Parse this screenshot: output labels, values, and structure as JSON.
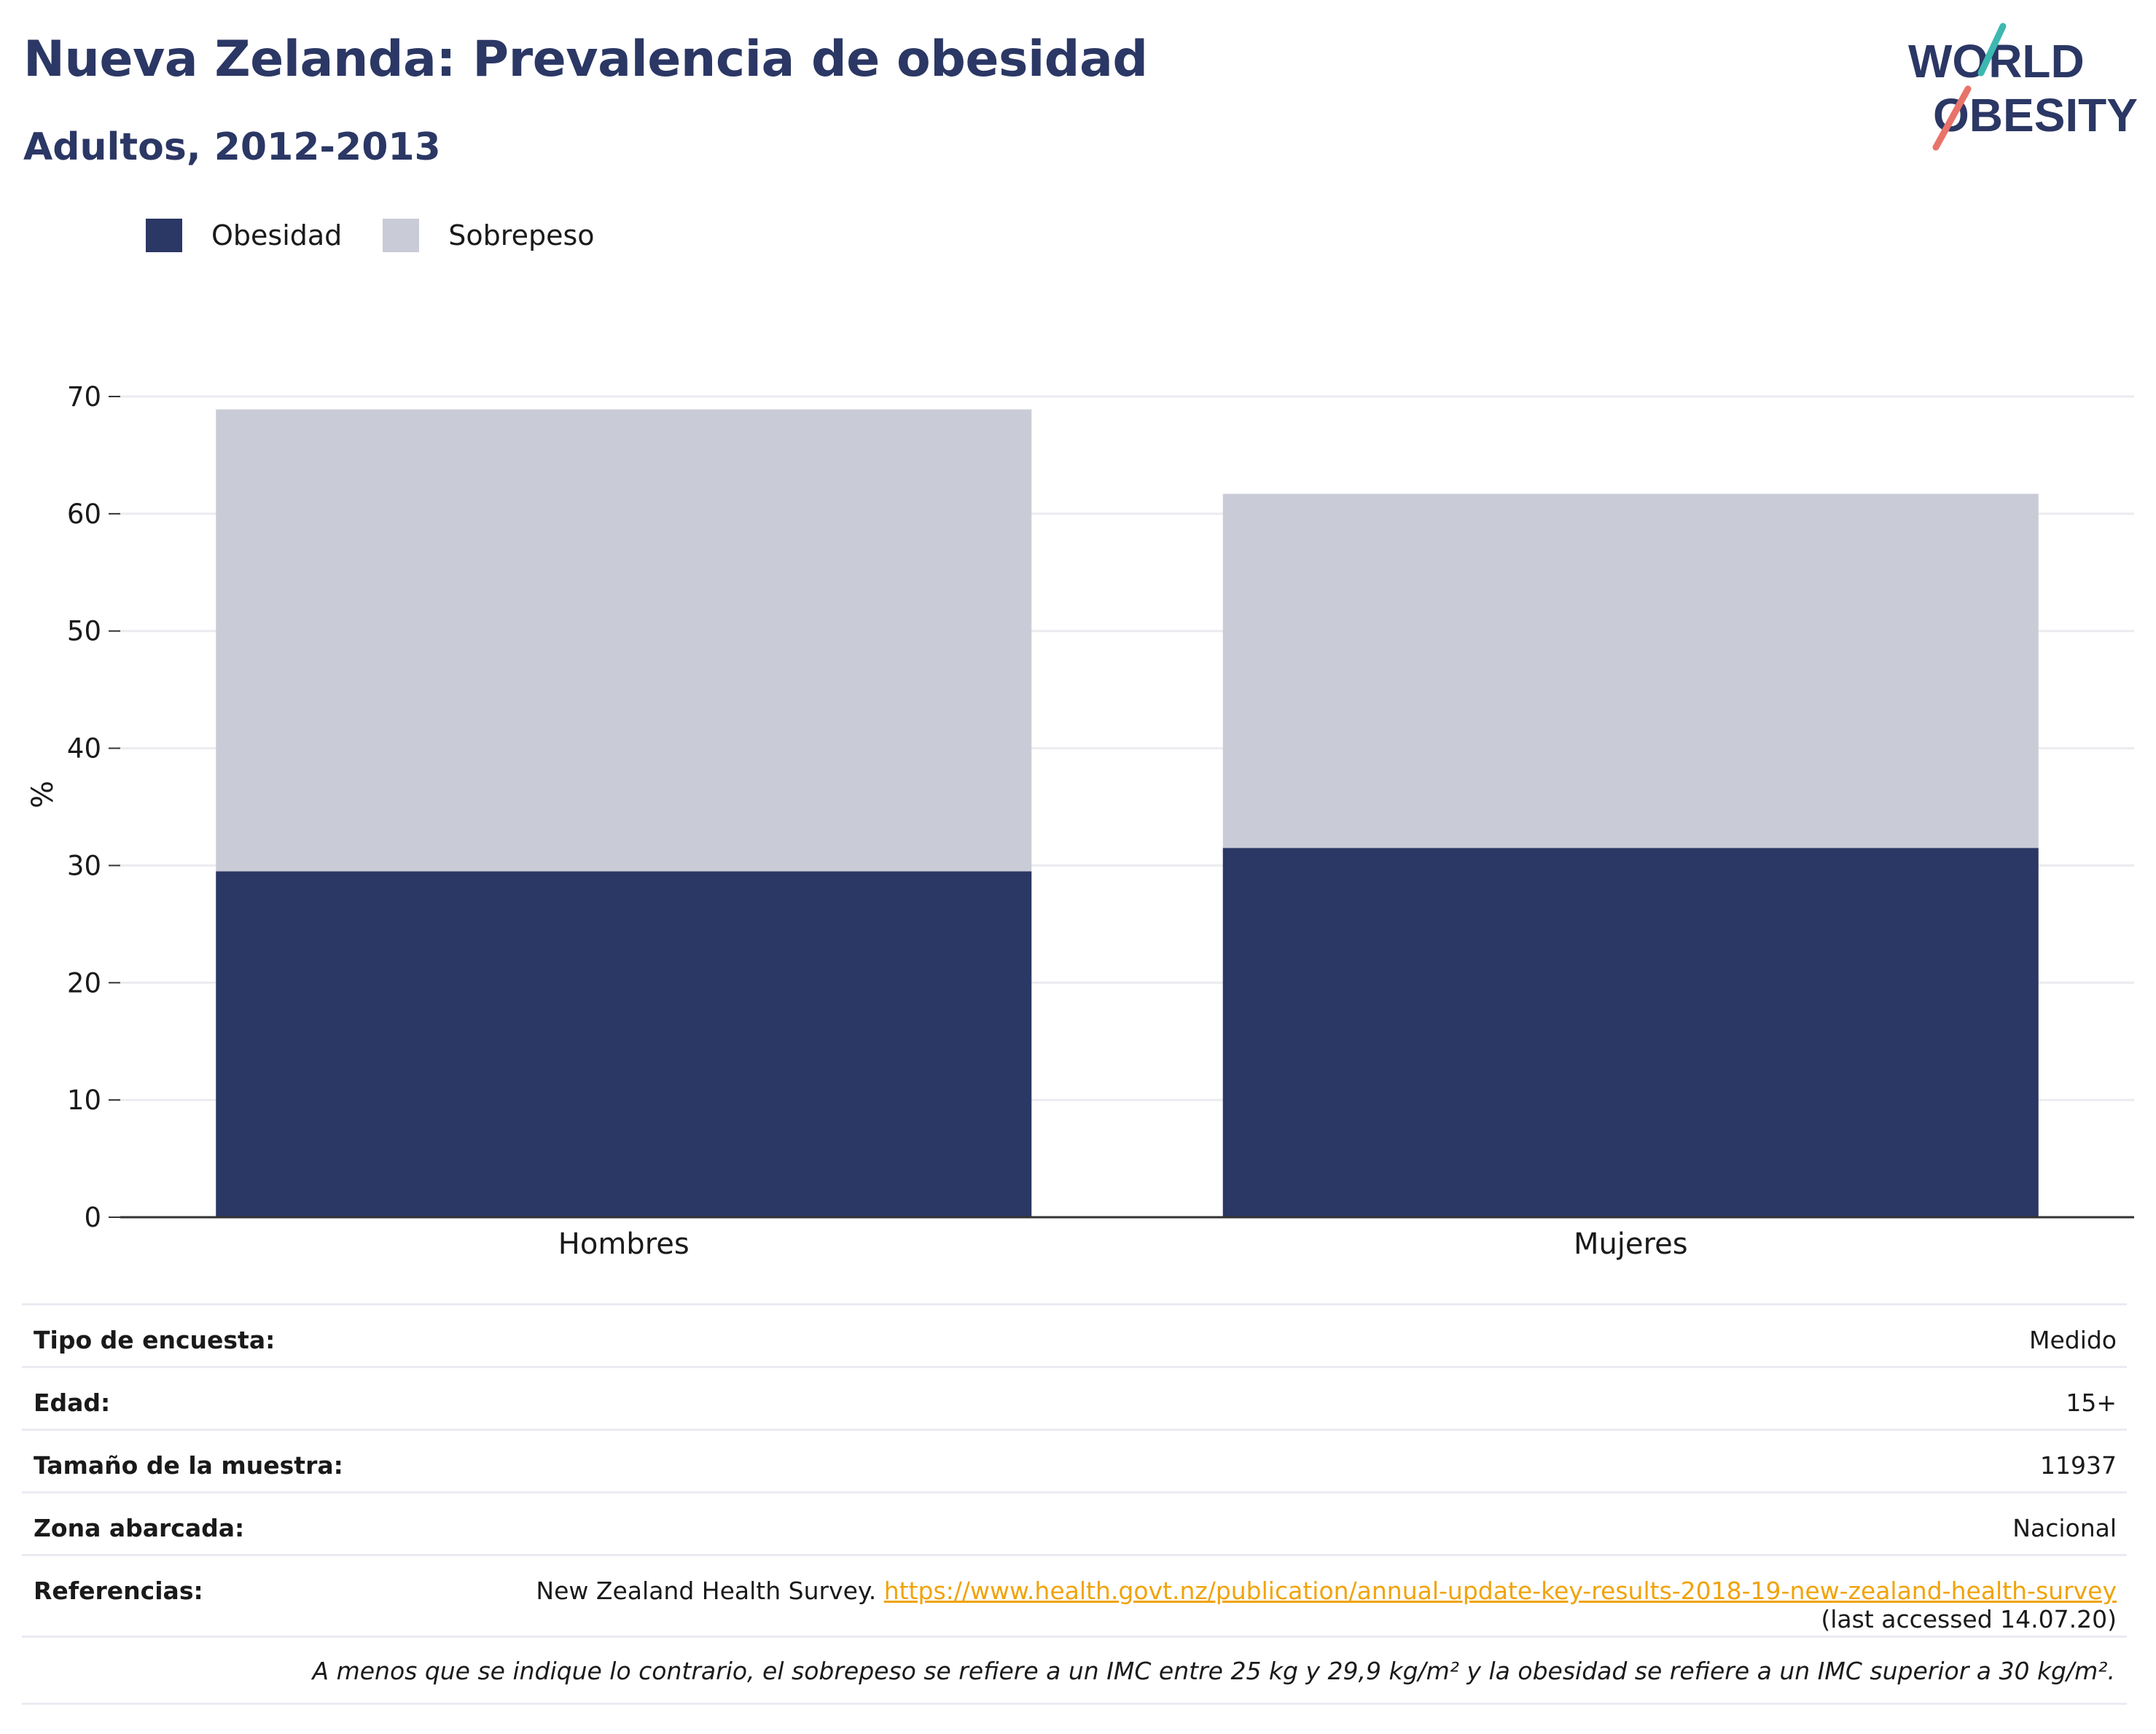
{
  "header": {
    "title": "Nueva Zelanda: Prevalencia de obesidad",
    "subtitle": "Adultos, 2012-2013"
  },
  "logo": {
    "line1": "WORLD",
    "line2": "OBESITY"
  },
  "colors": {
    "obesity": "#2b3764",
    "overweight": "#c9ccd7",
    "title": "#2b3764",
    "link": "#f0a30a",
    "logo_teal": "#3db8b0",
    "logo_coral": "#e8736a"
  },
  "chart_data": {
    "type": "bar",
    "stacked": true,
    "categories": [
      "Hombres",
      "Mujeres"
    ],
    "series": [
      {
        "name": "Obesidad",
        "values": [
          29.5,
          31.5
        ],
        "color": "#2b3764"
      },
      {
        "name": "Sobrepeso",
        "values": [
          39.4,
          30.2
        ],
        "color": "#c9ccd7"
      }
    ],
    "ylabel": "%",
    "xlabel": "",
    "ylim": [
      0,
      70
    ],
    "yticks": [
      0,
      10,
      20,
      30,
      40,
      50,
      60,
      70
    ],
    "grid": true,
    "legend": "top-left"
  },
  "info": {
    "rows": [
      {
        "label": "Tipo de encuesta:",
        "value": "Medido"
      },
      {
        "label": "Edad:",
        "value": "15+"
      },
      {
        "label": "Tamaño de la muestra:",
        "value": "11937"
      },
      {
        "label": "Zona abarcada:",
        "value": "Nacional"
      }
    ],
    "references": {
      "label": "Referencias:",
      "text": "New Zealand Health Survey.",
      "link": "https://www.health.govt.nz/publication/annual-update-key-results-2018-19-new-zealand-health-survey",
      "accessed": "(last accessed 14.07.20)"
    },
    "note": "A menos que se indique lo contrario, el sobrepeso se refiere a un IMC entre 25 kg y 29,9 kg/m² y la obesidad se refiere a un IMC superior a 30 kg/m²."
  }
}
